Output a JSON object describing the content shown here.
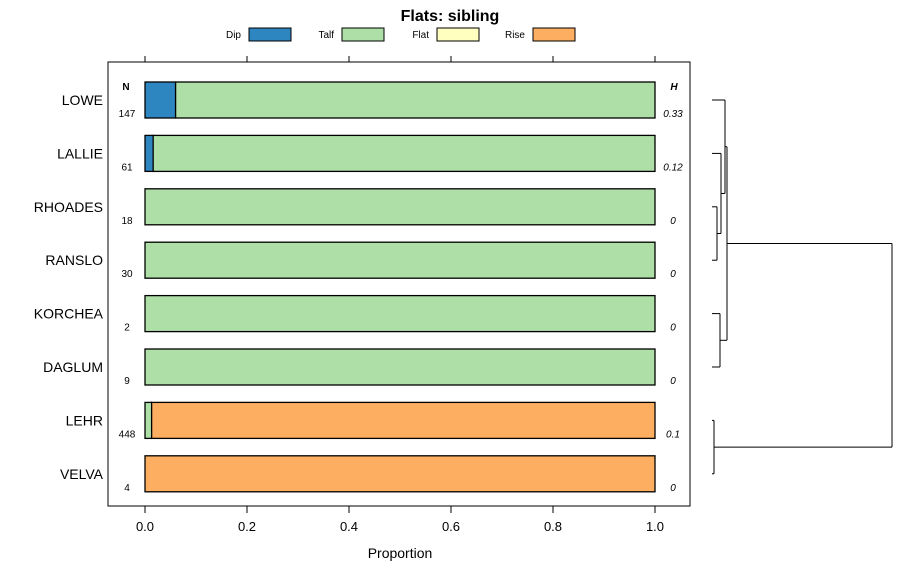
{
  "chart_data": {
    "type": "bar",
    "subtype": "stacked-horizontal-proportion",
    "title": "Flats: sibling",
    "xlabel": "Proportion",
    "xlim": [
      0,
      1
    ],
    "xticks": [
      0.0,
      0.2,
      0.4,
      0.6,
      0.8,
      1.0
    ],
    "tick_labels": [
      "0.0",
      "0.2",
      "0.4",
      "0.6",
      "0.8",
      "1.0"
    ],
    "legend": [
      {
        "name": "Dip",
        "color": "#2e86c1"
      },
      {
        "name": "Talf",
        "color": "#addfa6"
      },
      {
        "name": "Flat",
        "color": "#ffffc0"
      },
      {
        "name": "Rise",
        "color": "#fdae61"
      }
    ],
    "n_header": "N",
    "h_header": "H",
    "categories": [
      "LOWE",
      "LALLIE",
      "RHOADES",
      "RANSLO",
      "KORCHEA",
      "DAGLUM",
      "LEHR",
      "VELVA"
    ],
    "n": [
      "147",
      "61",
      "18",
      "30",
      "2",
      "9",
      "448",
      "4"
    ],
    "h": [
      "0.33",
      "0.12",
      "0",
      "0",
      "0",
      "0",
      "0.1",
      "0"
    ],
    "series": [
      {
        "name": "Dip",
        "values": [
          0.06,
          0.016,
          0,
          0,
          0,
          0,
          0,
          0
        ]
      },
      {
        "name": "Talf",
        "values": [
          0.94,
          0.984,
          1,
          1,
          1,
          1,
          0.013,
          0
        ]
      },
      {
        "name": "Flat",
        "values": [
          0,
          0,
          0,
          0,
          0,
          0,
          0,
          0
        ]
      },
      {
        "name": "Rise",
        "values": [
          0,
          0,
          0,
          0,
          0,
          0,
          0.987,
          1
        ]
      }
    ],
    "dendrogram": {
      "description": "hierarchical clustering of categories",
      "merges": [
        {
          "a": "RHOADES",
          "b": "RANSLO"
        },
        {
          "a": "LALLIE",
          "b": "RHOADES|RANSLO"
        },
        {
          "a": "LOWE",
          "b": "LALLIE|RHOADES|RANSLO"
        },
        {
          "a": "KORCHEA",
          "b": "DAGLUM"
        },
        {
          "a": "LOWE|LALLIE|RHOADES|RANSLO",
          "b": "KORCHEA|DAGLUM"
        },
        {
          "a": "LEHR",
          "b": "VELVA"
        },
        {
          "a": "upper-cluster",
          "b": "LEHR|VELVA"
        }
      ]
    }
  }
}
